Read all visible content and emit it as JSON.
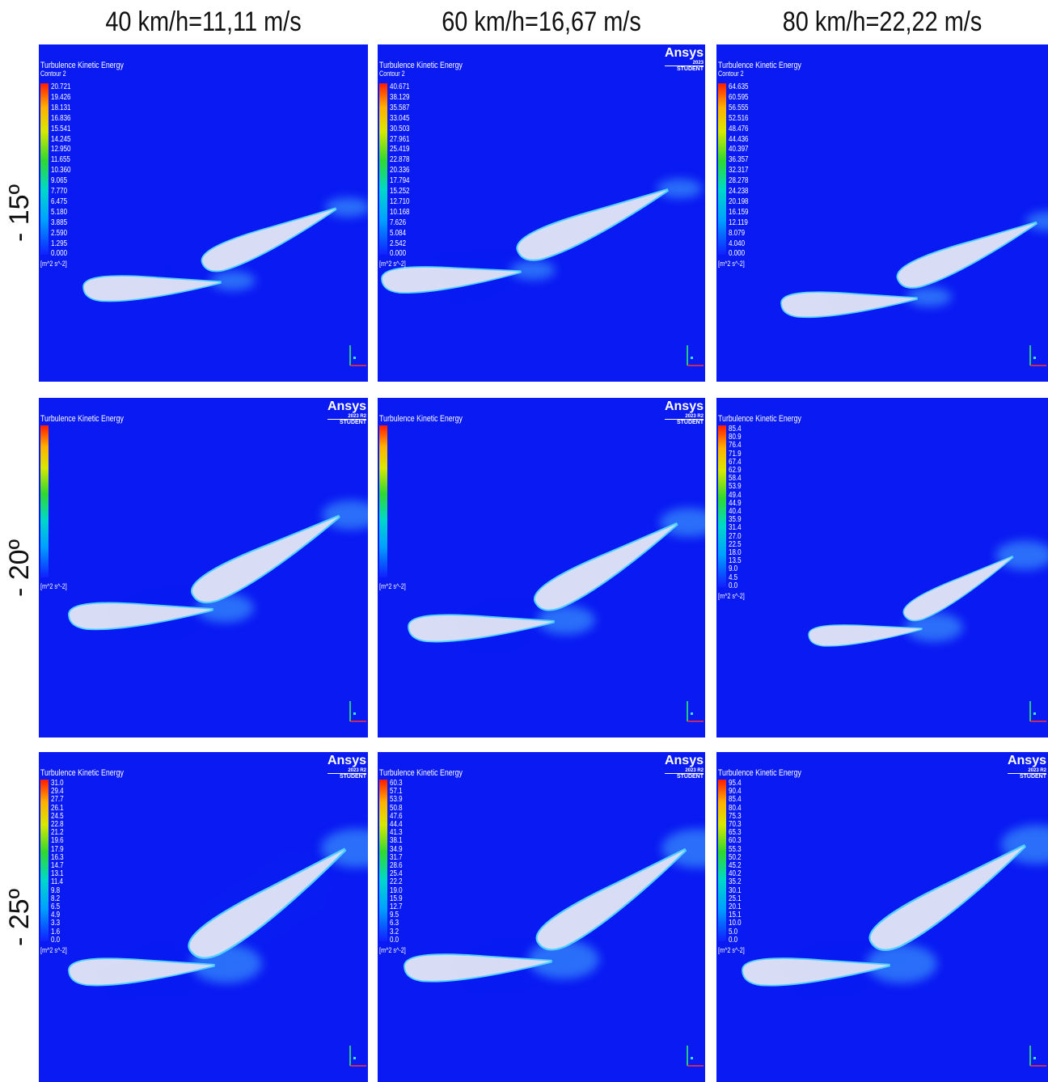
{
  "columns": [
    "40 km/h=11,11 m/s",
    "60 km/h=16,67 m/s",
    "80 km/h=22,22 m/s"
  ],
  "rows": [
    "- 15º",
    "- 20º",
    "- 25º"
  ],
  "panels": [
    [
      {
        "title": "Turbulence Kinetic Energy",
        "subtitle": "Contour 2",
        "levels": [
          "20.721",
          "19.426",
          "18.131",
          "16.836",
          "15.541",
          "14.245",
          "12.950",
          "11.655",
          "10.360",
          "9.065",
          "7.770",
          "6.475",
          "5.180",
          "3.885",
          "2.590",
          "1.295",
          "0.000"
        ],
        "unit": "[m^2 s^-2]"
      },
      {
        "title": "Turbulence Kinetic Energy",
        "subtitle": "Contour 2",
        "levels": [
          "40.671",
          "38.129",
          "35.587",
          "33.045",
          "30.503",
          "27.961",
          "25.419",
          "22.878",
          "20.336",
          "17.794",
          "15.252",
          "12.710",
          "10.168",
          "7.626",
          "5.084",
          "2.542",
          "0.000"
        ],
        "unit": "[m^2 s^-2]",
        "watermark": {
          "brand": "Ansys",
          "version": "2023",
          "edition": "STUDENT"
        }
      },
      {
        "title": "Turbulence Kinetic Energy",
        "subtitle": "Contour 2",
        "levels": [
          "64.635",
          "60.595",
          "56.555",
          "52.516",
          "48.476",
          "44.436",
          "40.397",
          "36.357",
          "32.317",
          "28.278",
          "24.238",
          "20.198",
          "16.159",
          "12.119",
          "8.079",
          "4.040",
          "0.000"
        ],
        "unit": "[m^2 s^-2]"
      }
    ],
    [
      {
        "title": "Turbulence Kinetic Energy",
        "unit": "[m^2 s^-2]",
        "watermark": {
          "brand": "Ansys",
          "version": "2023 R2",
          "edition": "STUDENT"
        }
      },
      {
        "title": "Turbulence Kinetic Energy",
        "unit": "[m^2 s^-2]",
        "watermark": {
          "brand": "Ansys",
          "version": "2023 R2",
          "edition": "STUDENT"
        }
      },
      {
        "title": "Turbulence Kinetic Energy",
        "levels": [
          "85.4",
          "80.9",
          "76.4",
          "71.9",
          "67.4",
          "62.9",
          "58.4",
          "53.9",
          "49.4",
          "44.9",
          "40.4",
          "35.9",
          "31.4",
          "27.0",
          "22.5",
          "18.0",
          "13.5",
          "9.0",
          "4.5",
          "0.0"
        ],
        "unit": "[m^2 s^-2]"
      }
    ],
    [
      {
        "title": "Turbulence Kinetic Energy",
        "levels": [
          "31.0",
          "29.4",
          "27.7",
          "26.1",
          "24.5",
          "22.8",
          "21.2",
          "19.6",
          "17.9",
          "16.3",
          "14.7",
          "13.1",
          "11.4",
          "9.8",
          "8.2",
          "6.5",
          "4.9",
          "3.3",
          "1.6",
          "0.0"
        ],
        "unit": "[m^2 s^-2]",
        "watermark": {
          "brand": "Ansys",
          "version": "2023 R2",
          "edition": "STUDENT"
        }
      },
      {
        "title": "Turbulence Kinetic Energy",
        "levels": [
          "60.3",
          "57.1",
          "53.9",
          "50.8",
          "47.6",
          "44.4",
          "41.3",
          "38.1",
          "34.9",
          "31.7",
          "28.6",
          "25.4",
          "22.2",
          "19.0",
          "15.9",
          "12.7",
          "9.5",
          "6.3",
          "3.2",
          "0.0"
        ],
        "unit": "[m^2 s^-2]",
        "watermark": {
          "brand": "Ansys",
          "version": "2023 R2",
          "edition": "STUDENT"
        }
      },
      {
        "title": "Turbulence Kinetic Energy",
        "levels": [
          "95.4",
          "90.4",
          "85.4",
          "80.4",
          "75.3",
          "70.3",
          "65.3",
          "60.3",
          "55.3",
          "50.2",
          "45.2",
          "40.2",
          "35.2",
          "30.1",
          "25.1",
          "20.1",
          "15.1",
          "10.0",
          "5.0",
          "0.0"
        ],
        "unit": "[m^2 s^-2]",
        "watermark": {
          "brand": "Ansys",
          "version": "2023 R2",
          "edition": "STUDENT"
        }
      }
    ]
  ]
}
